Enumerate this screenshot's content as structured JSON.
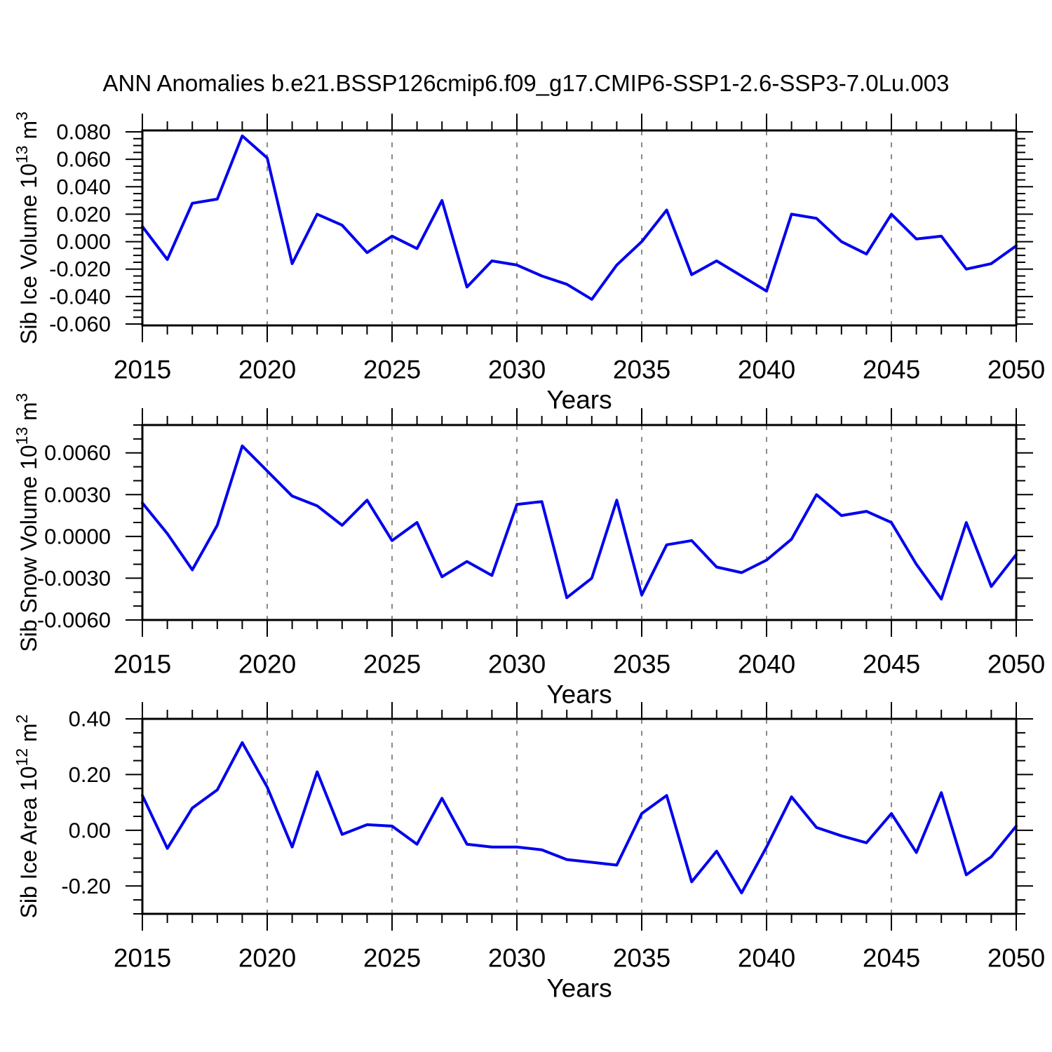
{
  "title": "ANN Anomalies b.e21.BSSP126cmip6.f09_g17.CMIP6-SSP1-2.6-SSP3-7.0Lu.003",
  "colors": {
    "line": "#0000ee",
    "axis": "#000000",
    "gridline": "#7d7d7d",
    "background": "#ffffff",
    "text": "#000000"
  },
  "x_axis": {
    "label": "Years",
    "min": 2015,
    "max": 2050,
    "major_tick_step": 5,
    "minor_tick_step": 1,
    "major_tick_labels": [
      "2015",
      "2020",
      "2025",
      "2030",
      "2035",
      "2040",
      "2045",
      "2050"
    ],
    "dashed_gridlines_at": [
      2020,
      2025,
      2030,
      2035,
      2040,
      2045
    ],
    "years": [
      2015,
      2016,
      2017,
      2018,
      2019,
      2020,
      2021,
      2022,
      2023,
      2024,
      2025,
      2026,
      2027,
      2028,
      2029,
      2030,
      2031,
      2032,
      2033,
      2034,
      2035,
      2036,
      2037,
      2038,
      2039,
      2040,
      2041,
      2042,
      2043,
      2044,
      2045,
      2046,
      2047,
      2048,
      2049,
      2050
    ]
  },
  "chart_data": [
    {
      "type": "line",
      "series_name": "Sib Ice Volume anomaly",
      "ylabel_text": "Sib Ice Volume 10^13 m^3",
      "ylabel_parts": {
        "main": "Sib Ice Volume 10",
        "sup": "13",
        "unit": " m",
        "unit_sup": "3"
      },
      "ylim": [
        -0.061,
        0.081
      ],
      "ytick_values": [
        0.08,
        0.06,
        0.04,
        0.02,
        0.0,
        -0.02,
        -0.04,
        -0.06
      ],
      "ytick_labels": [
        "0.080",
        "0.060",
        "0.040",
        "0.020",
        "0.000",
        "-0.020",
        "-0.040",
        "-0.060"
      ],
      "y_minor_step": 0.005,
      "values": [
        0.011,
        -0.013,
        0.028,
        0.031,
        0.077,
        0.061,
        -0.016,
        0.02,
        0.012,
        -0.008,
        0.004,
        -0.005,
        0.03,
        -0.033,
        -0.014,
        -0.017,
        -0.025,
        -0.031,
        -0.042,
        -0.017,
        0.0,
        0.023,
        -0.024,
        -0.014,
        -0.025,
        -0.036,
        0.02,
        0.017,
        0.0,
        -0.009,
        0.02,
        0.002,
        0.004,
        -0.02,
        -0.016,
        -0.003
      ]
    },
    {
      "type": "line",
      "series_name": "Sib Snow Volume anomaly",
      "ylabel_text": "Sib Snow Volume 10^13 m^3",
      "ylabel_parts": {
        "main": "Sib Snow Volume 10",
        "sup": "13",
        "unit": " m",
        "unit_sup": "3"
      },
      "ylim": [
        -0.006,
        0.008
      ],
      "ytick_values": [
        0.006,
        0.003,
        0.0,
        -0.003,
        -0.006
      ],
      "ytick_labels": [
        "0.0060",
        "0.0030",
        "0.0000",
        "-0.0030",
        "-0.0060"
      ],
      "y_minor_step": 0.001,
      "values": [
        0.0024,
        0.0002,
        -0.0024,
        0.0008,
        0.0065,
        0.0047,
        0.0029,
        0.0022,
        0.0008,
        0.0026,
        -0.0003,
        0.001,
        -0.0029,
        -0.0018,
        -0.0028,
        0.0023,
        0.0025,
        -0.0044,
        -0.003,
        0.0026,
        -0.0042,
        -0.0006,
        -0.0003,
        -0.0022,
        -0.0026,
        -0.0017,
        -0.0002,
        0.003,
        0.0015,
        0.0018,
        0.001,
        -0.002,
        -0.0045,
        0.001,
        -0.0036,
        -0.0013
      ]
    },
    {
      "type": "line",
      "series_name": "Sib Ice Area anomaly",
      "ylabel_text": "Sib Ice Area 10^12 m^2",
      "ylabel_parts": {
        "main": "Sib Ice Area 10",
        "sup": "12",
        "unit": " m",
        "unit_sup": "2"
      },
      "ylim": [
        -0.3,
        0.4
      ],
      "ytick_values": [
        0.4,
        0.2,
        0.0,
        -0.2
      ],
      "ytick_labels": [
        "0.40",
        "0.20",
        "0.00",
        "-0.20"
      ],
      "y_minor_step": 0.05,
      "values": [
        0.125,
        -0.065,
        0.08,
        0.145,
        0.315,
        0.155,
        -0.06,
        0.21,
        -0.015,
        0.02,
        0.015,
        -0.05,
        0.115,
        -0.05,
        -0.06,
        -0.06,
        -0.07,
        -0.105,
        -0.115,
        -0.125,
        0.06,
        0.125,
        -0.185,
        -0.075,
        -0.225,
        -0.06,
        0.12,
        0.01,
        -0.02,
        -0.045,
        0.06,
        -0.08,
        0.135,
        -0.16,
        -0.095,
        0.015
      ]
    }
  ]
}
